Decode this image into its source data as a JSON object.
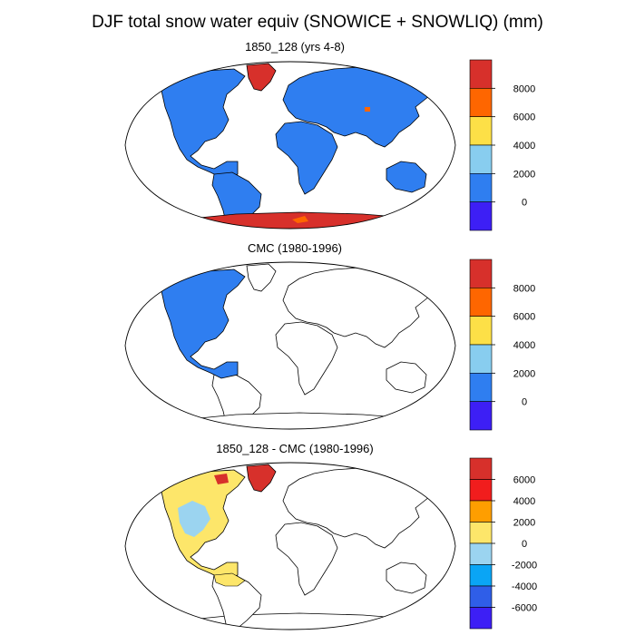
{
  "figure": {
    "title": "DJF total snow water equiv (SNOWICE + SNOWLIQ) (mm)"
  },
  "panels": [
    {
      "title": "1850_128 (yrs 4-8)",
      "colorbar": {
        "labels": [
          "8000",
          "6000",
          "4000",
          "2000",
          "0"
        ],
        "colors": [
          "#d7302b",
          "#fe6600",
          "#fde047",
          "#88cdef",
          "#2f7ef0",
          "#3d1ff5"
        ]
      }
    },
    {
      "title": "CMC (1980-1996)",
      "colorbar": {
        "labels": [
          "8000",
          "6000",
          "4000",
          "2000",
          "0"
        ],
        "colors": [
          "#d7302b",
          "#fe6600",
          "#fde047",
          "#88cdef",
          "#2f7ef0",
          "#3d1ff5"
        ]
      }
    },
    {
      "title": "1850_128 - CMC (1980-1996)",
      "colorbar": {
        "labels": [
          "6000",
          "4000",
          "2000",
          "0",
          "-2000",
          "-4000",
          "-6000"
        ],
        "colors": [
          "#d7302b",
          "#f11d1d",
          "#fe9e00",
          "#fde66a",
          "#9bd4f0",
          "#0aa5f5",
          "#2f5ee8",
          "#3d1ff5"
        ]
      }
    }
  ]
}
